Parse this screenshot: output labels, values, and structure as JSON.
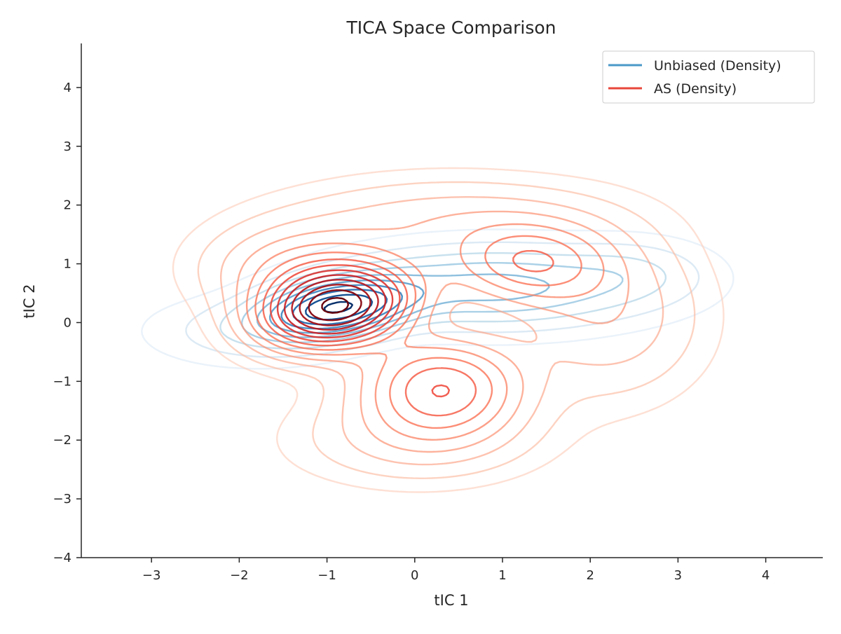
{
  "chart_data": {
    "type": "contour",
    "title": "TICA Space Comparison",
    "xlabel": "tIC 1",
    "ylabel": "tIC 2",
    "xlim": [
      -3.8,
      4.65
    ],
    "ylim": [
      -4.0,
      4.75
    ],
    "xticks": [
      -3,
      -2,
      -1,
      0,
      1,
      2,
      3,
      4
    ],
    "yticks": [
      -4,
      -3,
      -2,
      -1,
      0,
      1,
      2,
      3,
      4
    ],
    "xtick_labels": [
      "−3",
      "−2",
      "−1",
      "0",
      "1",
      "2",
      "3",
      "4"
    ],
    "ytick_labels": [
      "−4",
      "−3",
      "−2",
      "−1",
      "0",
      "1",
      "2",
      "3",
      "4"
    ],
    "grid": false,
    "legend_position": "top-right",
    "series": [
      {
        "name": "Unbiased (Density)",
        "color": "#4a98c9",
        "colormap": "Blues",
        "levels": 10,
        "components": [
          {
            "cx": -0.9,
            "cy": 0.25,
            "sx": 0.55,
            "sy": 0.32,
            "rho": 0.3,
            "w": 1.0
          },
          {
            "cx": 0.9,
            "cy": 0.6,
            "sx": 1.05,
            "sy": 0.42,
            "rho": 0.0,
            "w": 0.42
          },
          {
            "cx": 2.5,
            "cy": 0.85,
            "sx": 0.55,
            "sy": 0.35,
            "rho": 0.0,
            "w": 0.12
          },
          {
            "cx": -1.9,
            "cy": -0.15,
            "sx": 0.7,
            "sy": 0.35,
            "rho": 0.0,
            "w": 0.12
          }
        ]
      },
      {
        "name": "AS (Density)",
        "color": "#e8463a",
        "colormap": "Reds",
        "levels": 14,
        "components": [
          {
            "cx": -0.9,
            "cy": 0.25,
            "sx": 0.55,
            "sy": 0.45,
            "rho": 0.2,
            "w": 1.0
          },
          {
            "cx": 0.3,
            "cy": -1.1,
            "sx": 0.6,
            "sy": 0.55,
            "rho": 0.0,
            "w": 0.45
          },
          {
            "cx": 1.3,
            "cy": 1.0,
            "sx": 0.6,
            "sy": 0.45,
            "rho": 0.0,
            "w": 0.32
          },
          {
            "cx": -1.3,
            "cy": 0.9,
            "sx": 0.7,
            "sy": 0.5,
            "rho": 0.0,
            "w": 0.22
          },
          {
            "cx": 2.2,
            "cy": 0.1,
            "sx": 0.7,
            "sy": 0.9,
            "rho": 0.0,
            "w": 0.16
          },
          {
            "cx": 0.4,
            "cy": 1.7,
            "sx": 1.2,
            "sy": 0.5,
            "rho": 0.0,
            "w": 0.15
          },
          {
            "cx": 0.0,
            "cy": -2.0,
            "sx": 0.9,
            "sy": 0.5,
            "rho": 0.0,
            "w": 0.12
          }
        ]
      }
    ]
  }
}
